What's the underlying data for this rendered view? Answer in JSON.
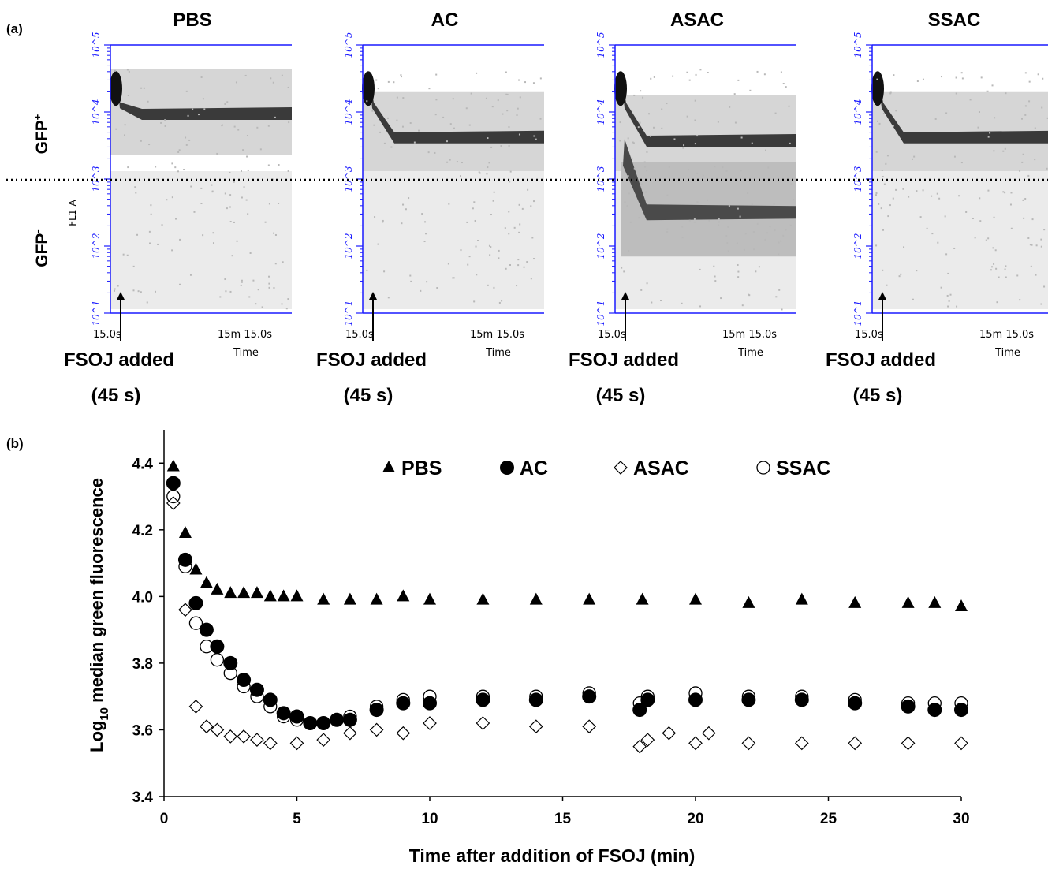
{
  "panel_a": {
    "label": "(a)",
    "gfp_pos_label": "GFP",
    "gfp_pos_sup": "+",
    "gfp_neg_label": "GFP",
    "gfp_neg_sup": "-",
    "y_axis_label": "FL1-A",
    "x_axis_label": "Time",
    "x_tick_start": "15.0s",
    "x_tick_end": "15m 15.0s",
    "y_ticks": [
      "10^1",
      "10^2",
      "10^3",
      "10^4",
      "10^5"
    ],
    "annotation_line1": "FSOJ added",
    "annotation_line2": "(45 s)",
    "panels": [
      {
        "title": "PBS",
        "gfp_pos_level": 4.0,
        "neg_level": null
      },
      {
        "title": "AC",
        "gfp_pos_level": 3.65,
        "neg_level": null
      },
      {
        "title": "ASAC",
        "gfp_pos_level": 3.6,
        "neg_level": 2.55
      },
      {
        "title": "SSAC",
        "gfp_pos_level": 3.65,
        "neg_level": null
      }
    ],
    "threshold": 3.0
  },
  "chart_data": {
    "type": "scatter",
    "panel_label": "(b)",
    "xlabel": "Time after addition of FSOJ (min)",
    "ylabel_prefix": "Log",
    "ylabel_sub": "10",
    "ylabel_rest": " median green fluorescence",
    "xlim": [
      0,
      30
    ],
    "ylim": [
      3.4,
      4.5
    ],
    "x_ticks": [
      0,
      5,
      10,
      15,
      20,
      25,
      30
    ],
    "y_ticks": [
      "3.4",
      "3.6",
      "3.8",
      "4.0",
      "4.2",
      "4.4"
    ],
    "legend_position": "top",
    "series": [
      {
        "name": "PBS",
        "marker": "filled-triangle",
        "x": [
          0.35,
          0.8,
          1.2,
          1.6,
          2.0,
          2.5,
          3.0,
          3.5,
          4.0,
          4.5,
          5.0,
          6.0,
          7.0,
          8.0,
          9.0,
          10.0,
          12.0,
          14.0,
          16.0,
          18.0,
          20.0,
          22.0,
          24.0,
          26.0,
          28.0,
          29.0,
          30.0
        ],
        "y": [
          4.39,
          4.19,
          4.08,
          4.04,
          4.02,
          4.01,
          4.01,
          4.01,
          4.0,
          4.0,
          4.0,
          3.99,
          3.99,
          3.99,
          4.0,
          3.99,
          3.99,
          3.99,
          3.99,
          3.99,
          3.99,
          3.98,
          3.99,
          3.98,
          3.98,
          3.98,
          3.97
        ]
      },
      {
        "name": "AC",
        "marker": "filled-circle",
        "x": [
          0.35,
          0.8,
          1.2,
          1.6,
          2.0,
          2.5,
          3.0,
          3.5,
          4.0,
          4.5,
          5.0,
          5.5,
          6.0,
          6.5,
          7.0,
          8.0,
          9.0,
          10.0,
          12.0,
          14.0,
          16.0,
          17.9,
          18.2,
          20.0,
          22.0,
          24.0,
          26.0,
          28.0,
          29.0,
          30.0
        ],
        "y": [
          4.34,
          4.11,
          3.98,
          3.9,
          3.85,
          3.8,
          3.75,
          3.72,
          3.69,
          3.65,
          3.64,
          3.62,
          3.62,
          3.63,
          3.63,
          3.66,
          3.68,
          3.68,
          3.69,
          3.69,
          3.7,
          3.66,
          3.69,
          3.69,
          3.69,
          3.69,
          3.68,
          3.67,
          3.66,
          3.66
        ]
      },
      {
        "name": "ASAC",
        "marker": "open-diamond",
        "x": [
          0.35,
          0.8,
          1.2,
          1.6,
          2.0,
          2.5,
          3.0,
          3.5,
          4.0,
          5.0,
          6.0,
          7.0,
          8.0,
          9.0,
          10.0,
          12.0,
          14.0,
          16.0,
          17.9,
          18.2,
          19.0,
          20.0,
          20.5,
          22.0,
          24.0,
          26.0,
          28.0,
          30.0
        ],
        "y": [
          4.28,
          3.96,
          3.67,
          3.61,
          3.6,
          3.58,
          3.58,
          3.57,
          3.56,
          3.56,
          3.57,
          3.59,
          3.6,
          3.59,
          3.62,
          3.62,
          3.61,
          3.61,
          3.55,
          3.57,
          3.59,
          3.56,
          3.59,
          3.56,
          3.56,
          3.56,
          3.56,
          3.56
        ]
      },
      {
        "name": "SSAC",
        "marker": "open-circle",
        "x": [
          0.35,
          0.8,
          1.2,
          1.6,
          2.0,
          2.5,
          3.0,
          3.5,
          4.0,
          4.5,
          5.0,
          5.5,
          6.0,
          6.5,
          7.0,
          8.0,
          9.0,
          10.0,
          12.0,
          14.0,
          16.0,
          17.9,
          18.2,
          20.0,
          22.0,
          24.0,
          26.0,
          28.0,
          29.0,
          30.0
        ],
        "y": [
          4.3,
          4.09,
          3.92,
          3.85,
          3.81,
          3.77,
          3.73,
          3.7,
          3.67,
          3.64,
          3.63,
          3.62,
          3.62,
          3.63,
          3.64,
          3.67,
          3.69,
          3.7,
          3.7,
          3.7,
          3.71,
          3.68,
          3.7,
          3.71,
          3.7,
          3.7,
          3.69,
          3.68,
          3.68,
          3.68
        ]
      }
    ]
  }
}
